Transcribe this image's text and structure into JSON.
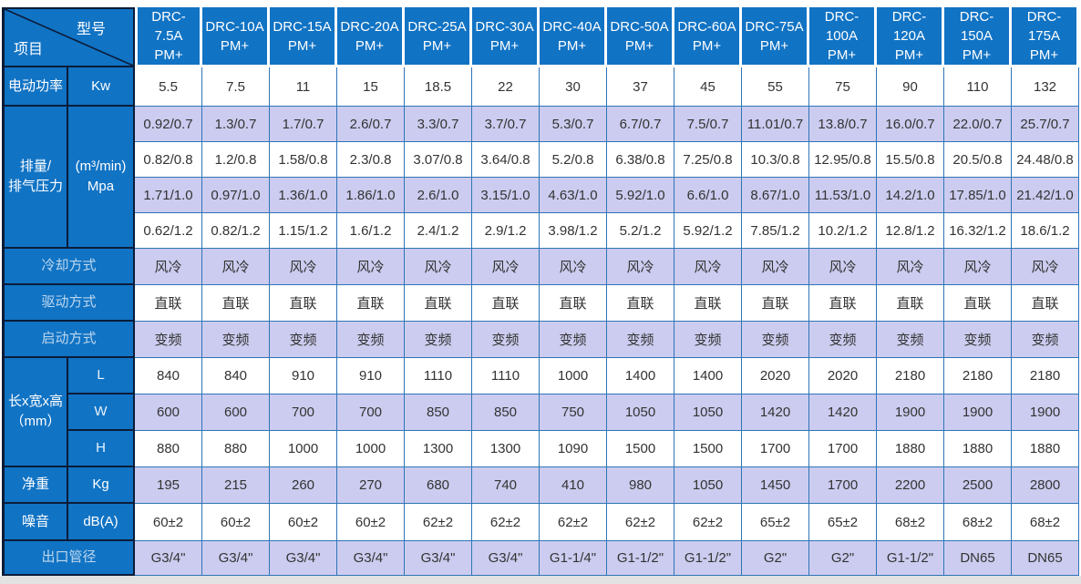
{
  "colors": {
    "header_blue": "#1173c4",
    "lavender_row": "#ccccf0",
    "grid_line_blue": "#2e75b6",
    "dark_border": "#0b1c38",
    "pale_label_text": "#bdd7ee",
    "data_text": "#333333"
  },
  "table": {
    "corner_model": "型号",
    "corner_item": "项目",
    "model_suffix": "PM+",
    "models": [
      "DRC-7.5A",
      "DRC-10A",
      "DRC-15A",
      "DRC-20A",
      "DRC-25A",
      "DRC-30A",
      "DRC-40A",
      "DRC-50A",
      "DRC-60A",
      "DRC-75A",
      "DRC-100A",
      "DRC-120A",
      "DRC-150A",
      "DRC-175A"
    ],
    "sections": [
      {
        "key": "power",
        "type": "simple",
        "label": "电动功率",
        "unit": "Kw",
        "shade": "white",
        "values": [
          "5.5",
          "7.5",
          "11",
          "15",
          "18.5",
          "22",
          "30",
          "37",
          "45",
          "55",
          "75",
          "90",
          "110",
          "132"
        ]
      },
      {
        "key": "displacement",
        "type": "group",
        "label": "排量/\n排气压力",
        "unit": "(m³/min)\nMpa",
        "rows": [
          {
            "shade": "lav",
            "values": [
              "0.92/0.7",
              "1.3/0.7",
              "1.7/0.7",
              "2.6/0.7",
              "3.3/0.7",
              "3.7/0.7",
              "5.3/0.7",
              "6.7/0.7",
              "7.5/0.7",
              "11.01/0.7",
              "13.8/0.7",
              "16.0/0.7",
              "22.0/0.7",
              "25.7/0.7"
            ]
          },
          {
            "shade": "white",
            "values": [
              "0.82/0.8",
              "1.2/0.8",
              "1.58/0.8",
              "2.3/0.8",
              "3.07/0.8",
              "3.64/0.8",
              "5.2/0.8",
              "6.38/0.8",
              "7.25/0.8",
              "10.3/0.8",
              "12.95/0.8",
              "15.5/0.8",
              "20.5/0.8",
              "24.48/0.8"
            ]
          },
          {
            "shade": "lav",
            "values": [
              "1.71/1.0",
              "0.97/1.0",
              "1.36/1.0",
              "1.86/1.0",
              "2.6/1.0",
              "3.15/1.0",
              "4.63/1.0",
              "5.92/1.0",
              "6.6/1.0",
              "8.67/1.0",
              "11.53/1.0",
              "14.2/1.0",
              "17.85/1.0",
              "21.42/1.0"
            ]
          },
          {
            "shade": "white",
            "values": [
              "0.62/1.2",
              "0.82/1.2",
              "1.15/1.2",
              "1.6/1.2",
              "2.4/1.2",
              "2.9/1.2",
              "3.98/1.2",
              "5.2/1.2",
              "5.92/1.2",
              "7.85/1.2",
              "10.2/1.2",
              "12.8/1.2",
              "16.32/1.2",
              "18.6/1.2"
            ]
          }
        ]
      },
      {
        "key": "cooling",
        "type": "merged",
        "label": "冷却方式",
        "shade": "lav",
        "values": [
          "风冷",
          "风冷",
          "风冷",
          "风冷",
          "风冷",
          "风冷",
          "风冷",
          "风冷",
          "风冷",
          "风冷",
          "风冷",
          "风冷",
          "风冷",
          "风冷"
        ]
      },
      {
        "key": "drive",
        "type": "merged",
        "label": "驱动方式",
        "shade": "white",
        "values": [
          "直联",
          "直联",
          "直联",
          "直联",
          "直联",
          "直联",
          "直联",
          "直联",
          "直联",
          "直联",
          "直联",
          "直联",
          "直联",
          "直联"
        ]
      },
      {
        "key": "start",
        "type": "merged",
        "label": "启动方式",
        "shade": "lav",
        "values": [
          "变频",
          "变频",
          "变频",
          "变频",
          "变频",
          "变频",
          "变频",
          "变频",
          "变频",
          "变频",
          "变频",
          "变频",
          "变频",
          "变频"
        ]
      },
      {
        "key": "dimensions",
        "type": "group",
        "label": "长x宽x高\n（mm）",
        "rows": [
          {
            "unit": "L",
            "shade": "white",
            "values": [
              "840",
              "840",
              "910",
              "910",
              "1110",
              "1110",
              "1000",
              "1400",
              "1400",
              "2020",
              "2020",
              "2180",
              "2180",
              "2180"
            ]
          },
          {
            "unit": "W",
            "shade": "lav",
            "values": [
              "600",
              "600",
              "700",
              "700",
              "850",
              "850",
              "750",
              "1050",
              "1050",
              "1420",
              "1420",
              "1900",
              "1900",
              "1900"
            ]
          },
          {
            "unit": "H",
            "shade": "white",
            "values": [
              "880",
              "880",
              "1000",
              "1000",
              "1300",
              "1300",
              "1090",
              "1500",
              "1500",
              "1700",
              "1700",
              "1880",
              "1880",
              "1880"
            ]
          }
        ]
      },
      {
        "key": "weight",
        "type": "simple",
        "label": "净重",
        "unit": "Kg",
        "shade": "lav",
        "values": [
          "195",
          "215",
          "260",
          "270",
          "680",
          "740",
          "410",
          "980",
          "1050",
          "1450",
          "1700",
          "2200",
          "2500",
          "2800"
        ]
      },
      {
        "key": "noise",
        "type": "simple",
        "label": "噪音",
        "unit": "dB(A)",
        "shade": "white",
        "values": [
          "60±2",
          "60±2",
          "60±2",
          "60±2",
          "62±2",
          "62±2",
          "62±2",
          "62±2",
          "62±2",
          "65±2",
          "65±2",
          "68±2",
          "68±2",
          "68±2"
        ]
      },
      {
        "key": "outlet",
        "type": "merged",
        "label": "出口管径",
        "shade": "lav",
        "values": [
          "G3/4\"",
          "G3/4\"",
          "G3/4\"",
          "G3/4\"",
          "G3/4\"",
          "G3/4\"",
          "G1-1/4\"",
          "G1-1/2\"",
          "G1-1/2\"",
          "G2\"",
          "G2\"",
          "G1-1/2\"",
          "DN65",
          "DN65"
        ]
      }
    ]
  }
}
